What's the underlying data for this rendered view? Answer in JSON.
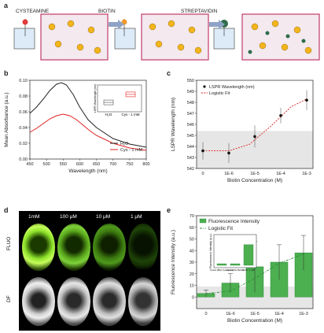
{
  "panel_a": {
    "letter": "a",
    "step1": "CYSTEAMINE",
    "step2": "BIOTIN",
    "step3": "STREPTAVIDIN"
  },
  "panel_b": {
    "letter": "b"
  },
  "panel_c": {
    "letter": "c"
  },
  "panel_d": {
    "letter": "d",
    "concentrations": [
      "1mM",
      "100 μM",
      "10 μM",
      "1 μM"
    ],
    "row_labels": [
      "FLUO",
      "DF"
    ]
  },
  "panel_e": {
    "letter": "e"
  },
  "colors": {
    "black": "#222222",
    "red": "#e02020",
    "green": "#4caf50",
    "dark_green": "#2e8b3c",
    "shade": "#e6e6e6"
  },
  "chart_data": [
    {
      "id": "b",
      "type": "line",
      "xlabel": "Wavelength (nm)",
      "ylabel": "Mean Absorbance (a.u.)",
      "xlim": [
        450,
        800
      ],
      "ylim": [
        0.0,
        0.1
      ],
      "xticks": [
        450,
        500,
        550,
        600,
        650,
        700,
        750,
        800
      ],
      "yticks": [
        0.0,
        0.02,
        0.04,
        0.06,
        0.08,
        0.1
      ],
      "ytick_labels": [
        "0.00",
        "0.02",
        "0.04",
        "0.06",
        "0.08",
        "0.10"
      ],
      "legend_position": "bottom-right",
      "series": [
        {
          "name": "H₂O",
          "color": "#222222",
          "x": [
            450,
            470,
            490,
            510,
            530,
            545,
            560,
            580,
            600,
            625,
            650,
            700,
            750,
            800
          ],
          "y": [
            0.058,
            0.066,
            0.076,
            0.087,
            0.095,
            0.097,
            0.094,
            0.082,
            0.066,
            0.05,
            0.04,
            0.026,
            0.019,
            0.015
          ]
        },
        {
          "name": "Cys - 1 mM",
          "color": "#e02020",
          "x": [
            450,
            470,
            490,
            510,
            530,
            550,
            570,
            590,
            610,
            630,
            650,
            700,
            750,
            800
          ],
          "y": [
            0.034,
            0.039,
            0.045,
            0.051,
            0.055,
            0.057,
            0.055,
            0.05,
            0.043,
            0.036,
            0.03,
            0.02,
            0.014,
            0.011
          ]
        }
      ],
      "inset": {
        "type": "box",
        "ylabel": "LSPR Wavelength (nm)",
        "categories": [
          "H₂O",
          "Cys - 1 mM"
        ],
        "values": [
          532,
          541
        ],
        "colors": [
          "#555555",
          "#e02020"
        ]
      }
    },
    {
      "id": "c",
      "type": "scatter",
      "xlabel": "Biotin Concentration (M)",
      "ylabel": "LSPR Wavelength (nm)",
      "ylim": [
        542,
        550
      ],
      "yticks": [
        542,
        543,
        544,
        545,
        546,
        547,
        548,
        549,
        550
      ],
      "categories": [
        "0",
        "1E-6",
        "1E-5",
        "1E-4",
        "1E-3"
      ],
      "values": [
        543.6,
        543.4,
        544.9,
        546.8,
        548.2
      ],
      "errors": [
        0.8,
        0.9,
        1.0,
        0.7,
        0.9
      ],
      "fit": [
        543.6,
        543.6,
        544.2,
        545.8,
        547.6,
        548.3
      ],
      "shade_max": 545.4,
      "legend": [
        "LSPR Wavelength (nm)",
        "Logistic Fit"
      ],
      "legend_position": "top-left"
    },
    {
      "id": "e",
      "type": "bar",
      "xlabel": "Biotin Concentration (M)",
      "ylabel": "Fluorescence Intensity (a.u.)",
      "ylim": [
        -10,
        70
      ],
      "yticks": [
        0,
        10,
        20,
        30,
        40,
        50,
        60,
        70
      ],
      "categories": [
        "0",
        "1E-6",
        "1E-5",
        "1E-4",
        "1E-3"
      ],
      "values": [
        3,
        12,
        26,
        30,
        38
      ],
      "errors": [
        3,
        8,
        22,
        15,
        15
      ],
      "shade_max": 9,
      "legend": [
        "Fluorescence Intensity",
        "Logistic Fit"
      ],
      "legend_position": "top-left",
      "inset": {
        "type": "bar",
        "ylabel": "Fluorescence Intensity (a.u.)",
        "categories": [
          "Control (BSA Cysteamine)",
          "Control (No Biotin)",
          "Biotin - 1 mM"
        ],
        "values": [
          3,
          3,
          40
        ]
      }
    }
  ]
}
